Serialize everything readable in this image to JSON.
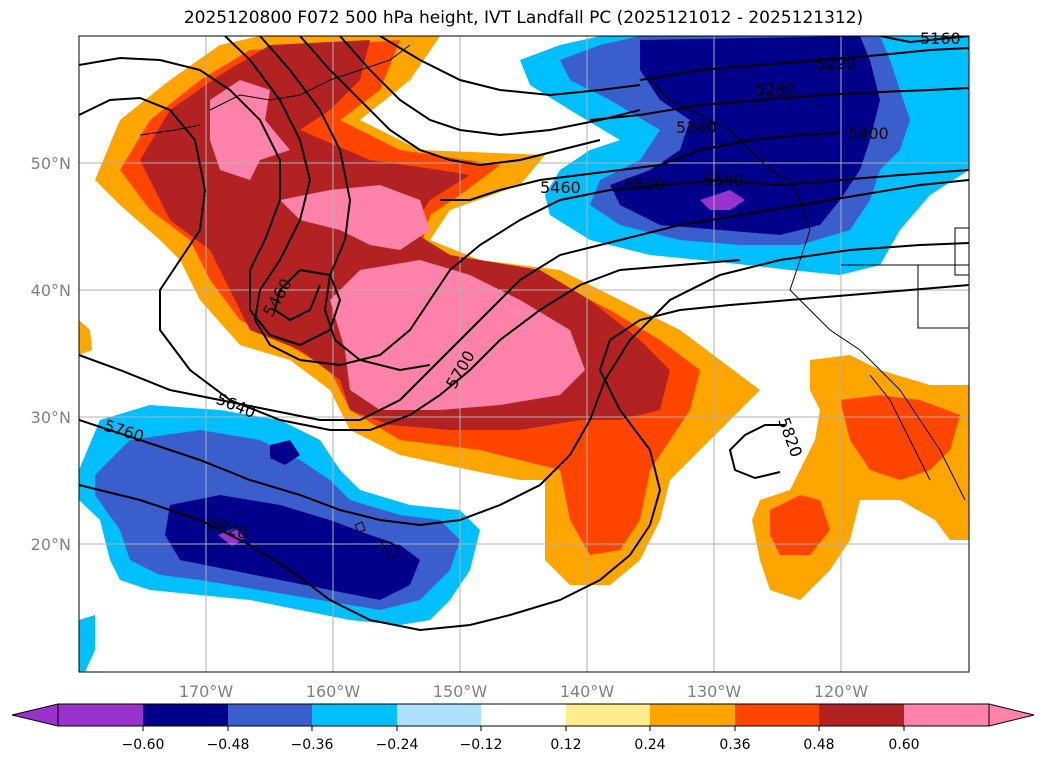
{
  "title": "2025120800 F072 500 hPa height, IVT Landfall PC (2025121012 - 2025121312)",
  "map": {
    "lon_labels": [
      "170°W",
      "160°W",
      "150°W",
      "140°W",
      "130°W",
      "120°W"
    ],
    "lat_labels": [
      "50°N",
      "40°N",
      "30°N",
      "20°N"
    ],
    "contour_labels": [
      "5160",
      "5220",
      "5280",
      "5340",
      "5400",
      "5460",
      "5520",
      "5580",
      "5460",
      "5640",
      "5700",
      "5760",
      "5820",
      "5820"
    ]
  },
  "colorbar": {
    "ticks": [
      "−0.60",
      "−0.48",
      "−0.36",
      "−0.24",
      "−0.12",
      "0.12",
      "0.24",
      "0.36",
      "0.48",
      "0.60"
    ],
    "colors": [
      "#9932CC",
      "#00008B",
      "#3A5FCD",
      "#00BFFF",
      "#ADE0FA",
      "#FFFFFF",
      "#FFEC8B",
      "#FFA500",
      "#FF4500",
      "#B22222",
      "#FF82AB"
    ]
  }
}
